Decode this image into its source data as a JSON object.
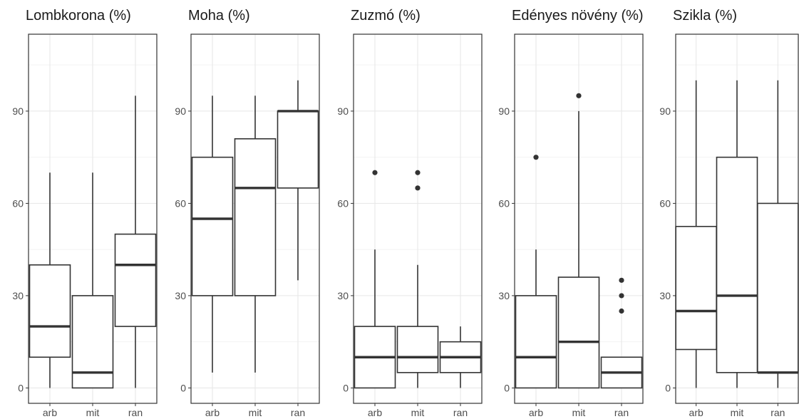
{
  "figure": {
    "panels": [
      {
        "title": "Lombkorona (%)"
      },
      {
        "title": "Moha (%)"
      },
      {
        "title": "Zuzmó (%)"
      },
      {
        "title": "Edényes növény (%)"
      },
      {
        "title": "Szikla (%)"
      }
    ]
  },
  "chart_data": [
    {
      "type": "box",
      "title": "Lombkorona (%)",
      "categories": [
        "arb",
        "mit",
        "ran"
      ],
      "yticks": [
        0,
        30,
        60,
        90
      ],
      "ylim": [
        -5,
        115
      ],
      "grid": true,
      "boxes": [
        {
          "category": "arb",
          "min": 0,
          "q1": 10,
          "median": 20,
          "q3": 40,
          "max": 70,
          "outliers": []
        },
        {
          "category": "mit",
          "min": 0,
          "q1": 0,
          "median": 5,
          "q3": 30,
          "max": 70,
          "outliers": []
        },
        {
          "category": "ran",
          "min": 0,
          "q1": 20,
          "median": 40,
          "q3": 50,
          "max": 95,
          "outliers": []
        }
      ]
    },
    {
      "type": "box",
      "title": "Moha (%)",
      "categories": [
        "arb",
        "mit",
        "ran"
      ],
      "yticks": [
        0,
        30,
        60,
        90
      ],
      "ylim": [
        -5,
        115
      ],
      "grid": true,
      "boxes": [
        {
          "category": "arb",
          "min": 5,
          "q1": 30,
          "median": 55,
          "q3": 75,
          "max": 95,
          "outliers": []
        },
        {
          "category": "mit",
          "min": 5,
          "q1": 30,
          "median": 65,
          "q3": 81,
          "max": 95,
          "outliers": []
        },
        {
          "category": "ran",
          "min": 35,
          "q1": 65,
          "median": 90,
          "q3": 90,
          "max": 100,
          "outliers": []
        }
      ]
    },
    {
      "type": "box",
      "title": "Zuzmó (%)",
      "categories": [
        "arb",
        "mit",
        "ran"
      ],
      "yticks": [
        0,
        30,
        60,
        90
      ],
      "ylim": [
        -5,
        115
      ],
      "grid": true,
      "boxes": [
        {
          "category": "arb",
          "min": 0,
          "q1": 0,
          "median": 10,
          "q3": 20,
          "max": 45,
          "outliers": [
            70
          ]
        },
        {
          "category": "mit",
          "min": 0,
          "q1": 5,
          "median": 10,
          "q3": 20,
          "max": 40,
          "outliers": [
            65,
            70
          ]
        },
        {
          "category": "ran",
          "min": 0,
          "q1": 5,
          "median": 10,
          "q3": 15,
          "max": 20,
          "outliers": []
        }
      ]
    },
    {
      "type": "box",
      "title": "Edényes növény (%)",
      "categories": [
        "arb",
        "mit",
        "ran"
      ],
      "yticks": [
        0,
        30,
        60,
        90
      ],
      "ylim": [
        -5,
        115
      ],
      "grid": true,
      "boxes": [
        {
          "category": "arb",
          "min": 0,
          "q1": 0,
          "median": 10,
          "q3": 30,
          "max": 45,
          "outliers": [
            75
          ]
        },
        {
          "category": "mit",
          "min": 0,
          "q1": 0,
          "median": 15,
          "q3": 36,
          "max": 90,
          "outliers": [
            95
          ]
        },
        {
          "category": "ran",
          "min": 0,
          "q1": 0,
          "median": 5,
          "q3": 10,
          "max": 10,
          "outliers": [
            25,
            30,
            35
          ]
        }
      ]
    },
    {
      "type": "box",
      "title": "Szikla (%)",
      "categories": [
        "arb",
        "mit",
        "ran"
      ],
      "yticks": [
        0,
        30,
        60,
        90
      ],
      "ylim": [
        -5,
        115
      ],
      "grid": true,
      "boxes": [
        {
          "category": "arb",
          "min": 0,
          "q1": 12.5,
          "median": 25,
          "q3": 52.5,
          "max": 100,
          "outliers": []
        },
        {
          "category": "mit",
          "min": 0,
          "q1": 5,
          "median": 30,
          "q3": 75,
          "max": 100,
          "outliers": []
        },
        {
          "category": "ran",
          "min": 0,
          "q1": 5,
          "median": 5,
          "q3": 60,
          "max": 100,
          "outliers": []
        }
      ]
    }
  ]
}
